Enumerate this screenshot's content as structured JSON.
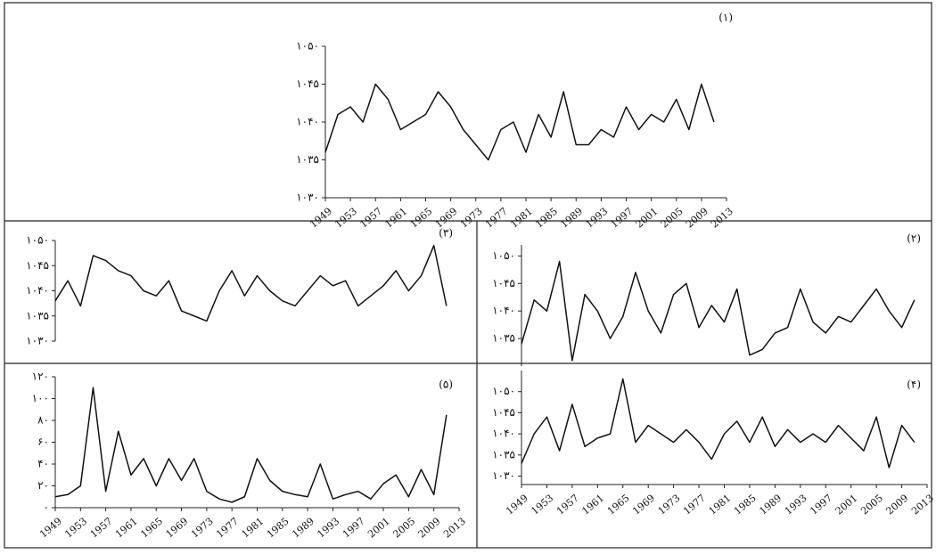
{
  "chart_data": [
    {
      "type": "line",
      "title": "(۱)",
      "color": "#111",
      "x": [
        1949,
        1951,
        1953,
        1955,
        1957,
        1959,
        1961,
        1963,
        1965,
        1967,
        1969,
        1971,
        1973,
        1975,
        1977,
        1979,
        1981,
        1983,
        1985,
        1987,
        1989,
        1991,
        1993,
        1995,
        1997,
        1999,
        2001,
        2003,
        2005,
        2007,
        2009,
        2011
      ],
      "values": [
        1036,
        1041,
        1042,
        1040,
        1045,
        1043,
        1039,
        1040,
        1041,
        1044,
        1042,
        1039,
        1037,
        1035,
        1039,
        1040,
        1036,
        1041,
        1038,
        1044,
        1037,
        1037,
        1039,
        1038,
        1042,
        1039,
        1041,
        1040,
        1043,
        1039,
        1045,
        1040
      ],
      "xlim": [
        1949,
        2013
      ],
      "xticks": [
        1949,
        1953,
        1957,
        1961,
        1965,
        1969,
        1973,
        1977,
        1981,
        1985,
        1989,
        1993,
        1997,
        2001,
        2005,
        2009,
        2013
      ],
      "ylim": [
        1030,
        1050
      ],
      "yticks": [
        {
          "value": 1030,
          "label": "۱۰۳۰"
        },
        {
          "value": 1035,
          "label": "۱۰۳۵"
        },
        {
          "value": 1040,
          "label": "۱۰۴۰"
        },
        {
          "value": 1045,
          "label": "۱۰۴۵"
        },
        {
          "value": 1050,
          "label": "۱۰۵۰"
        }
      ]
    },
    {
      "type": "line",
      "title": "(۳)",
      "color": "#111",
      "x": [
        1949,
        1951,
        1953,
        1955,
        1957,
        1959,
        1961,
        1963,
        1965,
        1967,
        1969,
        1971,
        1973,
        1975,
        1977,
        1979,
        1981,
        1983,
        1985,
        1987,
        1989,
        1991,
        1993,
        1995,
        1997,
        1999,
        2001,
        2003,
        2005,
        2007,
        2009,
        2011
      ],
      "values": [
        1038,
        1042,
        1037,
        1047,
        1046,
        1044,
        1043,
        1040,
        1039,
        1042,
        1036,
        1035,
        1034,
        1040,
        1044,
        1039,
        1043,
        1040,
        1038,
        1037,
        1040,
        1043,
        1041,
        1042,
        1037,
        1039,
        1041,
        1044,
        1040,
        1043,
        1049,
        1037
      ],
      "xlim": [
        1949,
        2013
      ],
      "ylim": [
        1030,
        1050
      ],
      "yticks": [
        {
          "value": 1030,
          "label": "۱۰۳۰"
        },
        {
          "value": 1035,
          "label": "۱۰۳۵"
        },
        {
          "value": 1040,
          "label": "۱۰۴۰"
        },
        {
          "value": 1045,
          "label": "۱۰۴۵"
        },
        {
          "value": 1050,
          "label": "۱۰۵۰"
        }
      ]
    },
    {
      "type": "line",
      "title": "(۲)",
      "color": "#111",
      "x": [
        1949,
        1951,
        1953,
        1955,
        1957,
        1959,
        1961,
        1963,
        1965,
        1967,
        1969,
        1971,
        1973,
        1975,
        1977,
        1979,
        1981,
        1983,
        1985,
        1987,
        1989,
        1991,
        1993,
        1995,
        1997,
        1999,
        2001,
        2003,
        2005,
        2007,
        2009,
        2011
      ],
      "values": [
        1034,
        1042,
        1040,
        1049,
        1031,
        1043,
        1040,
        1035,
        1039,
        1047,
        1040,
        1036,
        1043,
        1045,
        1037,
        1041,
        1038,
        1044,
        1032,
        1033,
        1036,
        1037,
        1044,
        1038,
        1036,
        1039,
        1038,
        1041,
        1044,
        1040,
        1037,
        1042
      ],
      "xlim": [
        1949,
        2013
      ],
      "ylim": [
        1030,
        1052
      ],
      "yticks": [
        {
          "value": 1035,
          "label": "۱۰۳۵"
        },
        {
          "value": 1040,
          "label": "۱۰۴۰"
        },
        {
          "value": 1045,
          "label": "۱۰۴۵"
        },
        {
          "value": 1050,
          "label": "۱۰۵۰"
        }
      ]
    },
    {
      "type": "line",
      "title": "(۵)",
      "color": "#111",
      "x": [
        1949,
        1951,
        1953,
        1955,
        1957,
        1959,
        1961,
        1963,
        1965,
        1967,
        1969,
        1971,
        1973,
        1975,
        1977,
        1979,
        1981,
        1983,
        1985,
        1987,
        1989,
        1991,
        1993,
        1995,
        1997,
        1999,
        2001,
        2003,
        2005,
        2007,
        2009,
        2011
      ],
      "values": [
        10,
        12,
        20,
        110,
        15,
        70,
        30,
        45,
        20,
        45,
        25,
        45,
        15,
        8,
        5,
        10,
        45,
        25,
        15,
        12,
        10,
        40,
        8,
        12,
        15,
        8,
        22,
        30,
        10,
        35,
        12,
        85
      ],
      "xlim": [
        1949,
        2013
      ],
      "xticks": [
        1949,
        1953,
        1957,
        1961,
        1965,
        1969,
        1973,
        1977,
        1981,
        1985,
        1989,
        1993,
        1997,
        2001,
        2005,
        2009,
        2013
      ],
      "ylim": [
        0,
        120
      ],
      "yticks": [
        {
          "value": 0,
          "label": "۰"
        },
        {
          "value": 20,
          "label": "۲۰"
        },
        {
          "value": 40,
          "label": "۴۰"
        },
        {
          "value": 60,
          "label": "۶۰"
        },
        {
          "value": 80,
          "label": "۸۰"
        },
        {
          "value": 100,
          "label": "۱۰۰"
        },
        {
          "value": 120,
          "label": "۱۲۰"
        }
      ]
    },
    {
      "type": "line",
      "title": "(۴)",
      "color": "#111",
      "x": [
        1949,
        1951,
        1953,
        1955,
        1957,
        1959,
        1961,
        1963,
        1965,
        1967,
        1969,
        1971,
        1973,
        1975,
        1977,
        1979,
        1981,
        1983,
        1985,
        1987,
        1989,
        1991,
        1993,
        1995,
        1997,
        1999,
        2001,
        2003,
        2005,
        2007,
        2009,
        2011
      ],
      "values": [
        1033,
        1040,
        1044,
        1036,
        1047,
        1037,
        1039,
        1040,
        1053,
        1038,
        1042,
        1040,
        1038,
        1041,
        1038,
        1034,
        1040,
        1043,
        1038,
        1044,
        1037,
        1041,
        1038,
        1040,
        1038,
        1042,
        1039,
        1036,
        1044,
        1032,
        1042,
        1038
      ],
      "xlim": [
        1949,
        2013
      ],
      "xticks": [
        1949,
        1953,
        1957,
        1961,
        1965,
        1969,
        1973,
        1977,
        1981,
        1985,
        1989,
        1993,
        1997,
        2001,
        2005,
        2009,
        2013
      ],
      "ylim": [
        1028,
        1055
      ],
      "yticks": [
        {
          "value": 1030,
          "label": "۱۰۳۰"
        },
        {
          "value": 1035,
          "label": "۱۰۳۵"
        },
        {
          "value": 1040,
          "label": "۱۰۴۰"
        },
        {
          "value": 1045,
          "label": "۱۰۴۵"
        },
        {
          "value": 1050,
          "label": "۱۰۵۰"
        }
      ]
    }
  ]
}
